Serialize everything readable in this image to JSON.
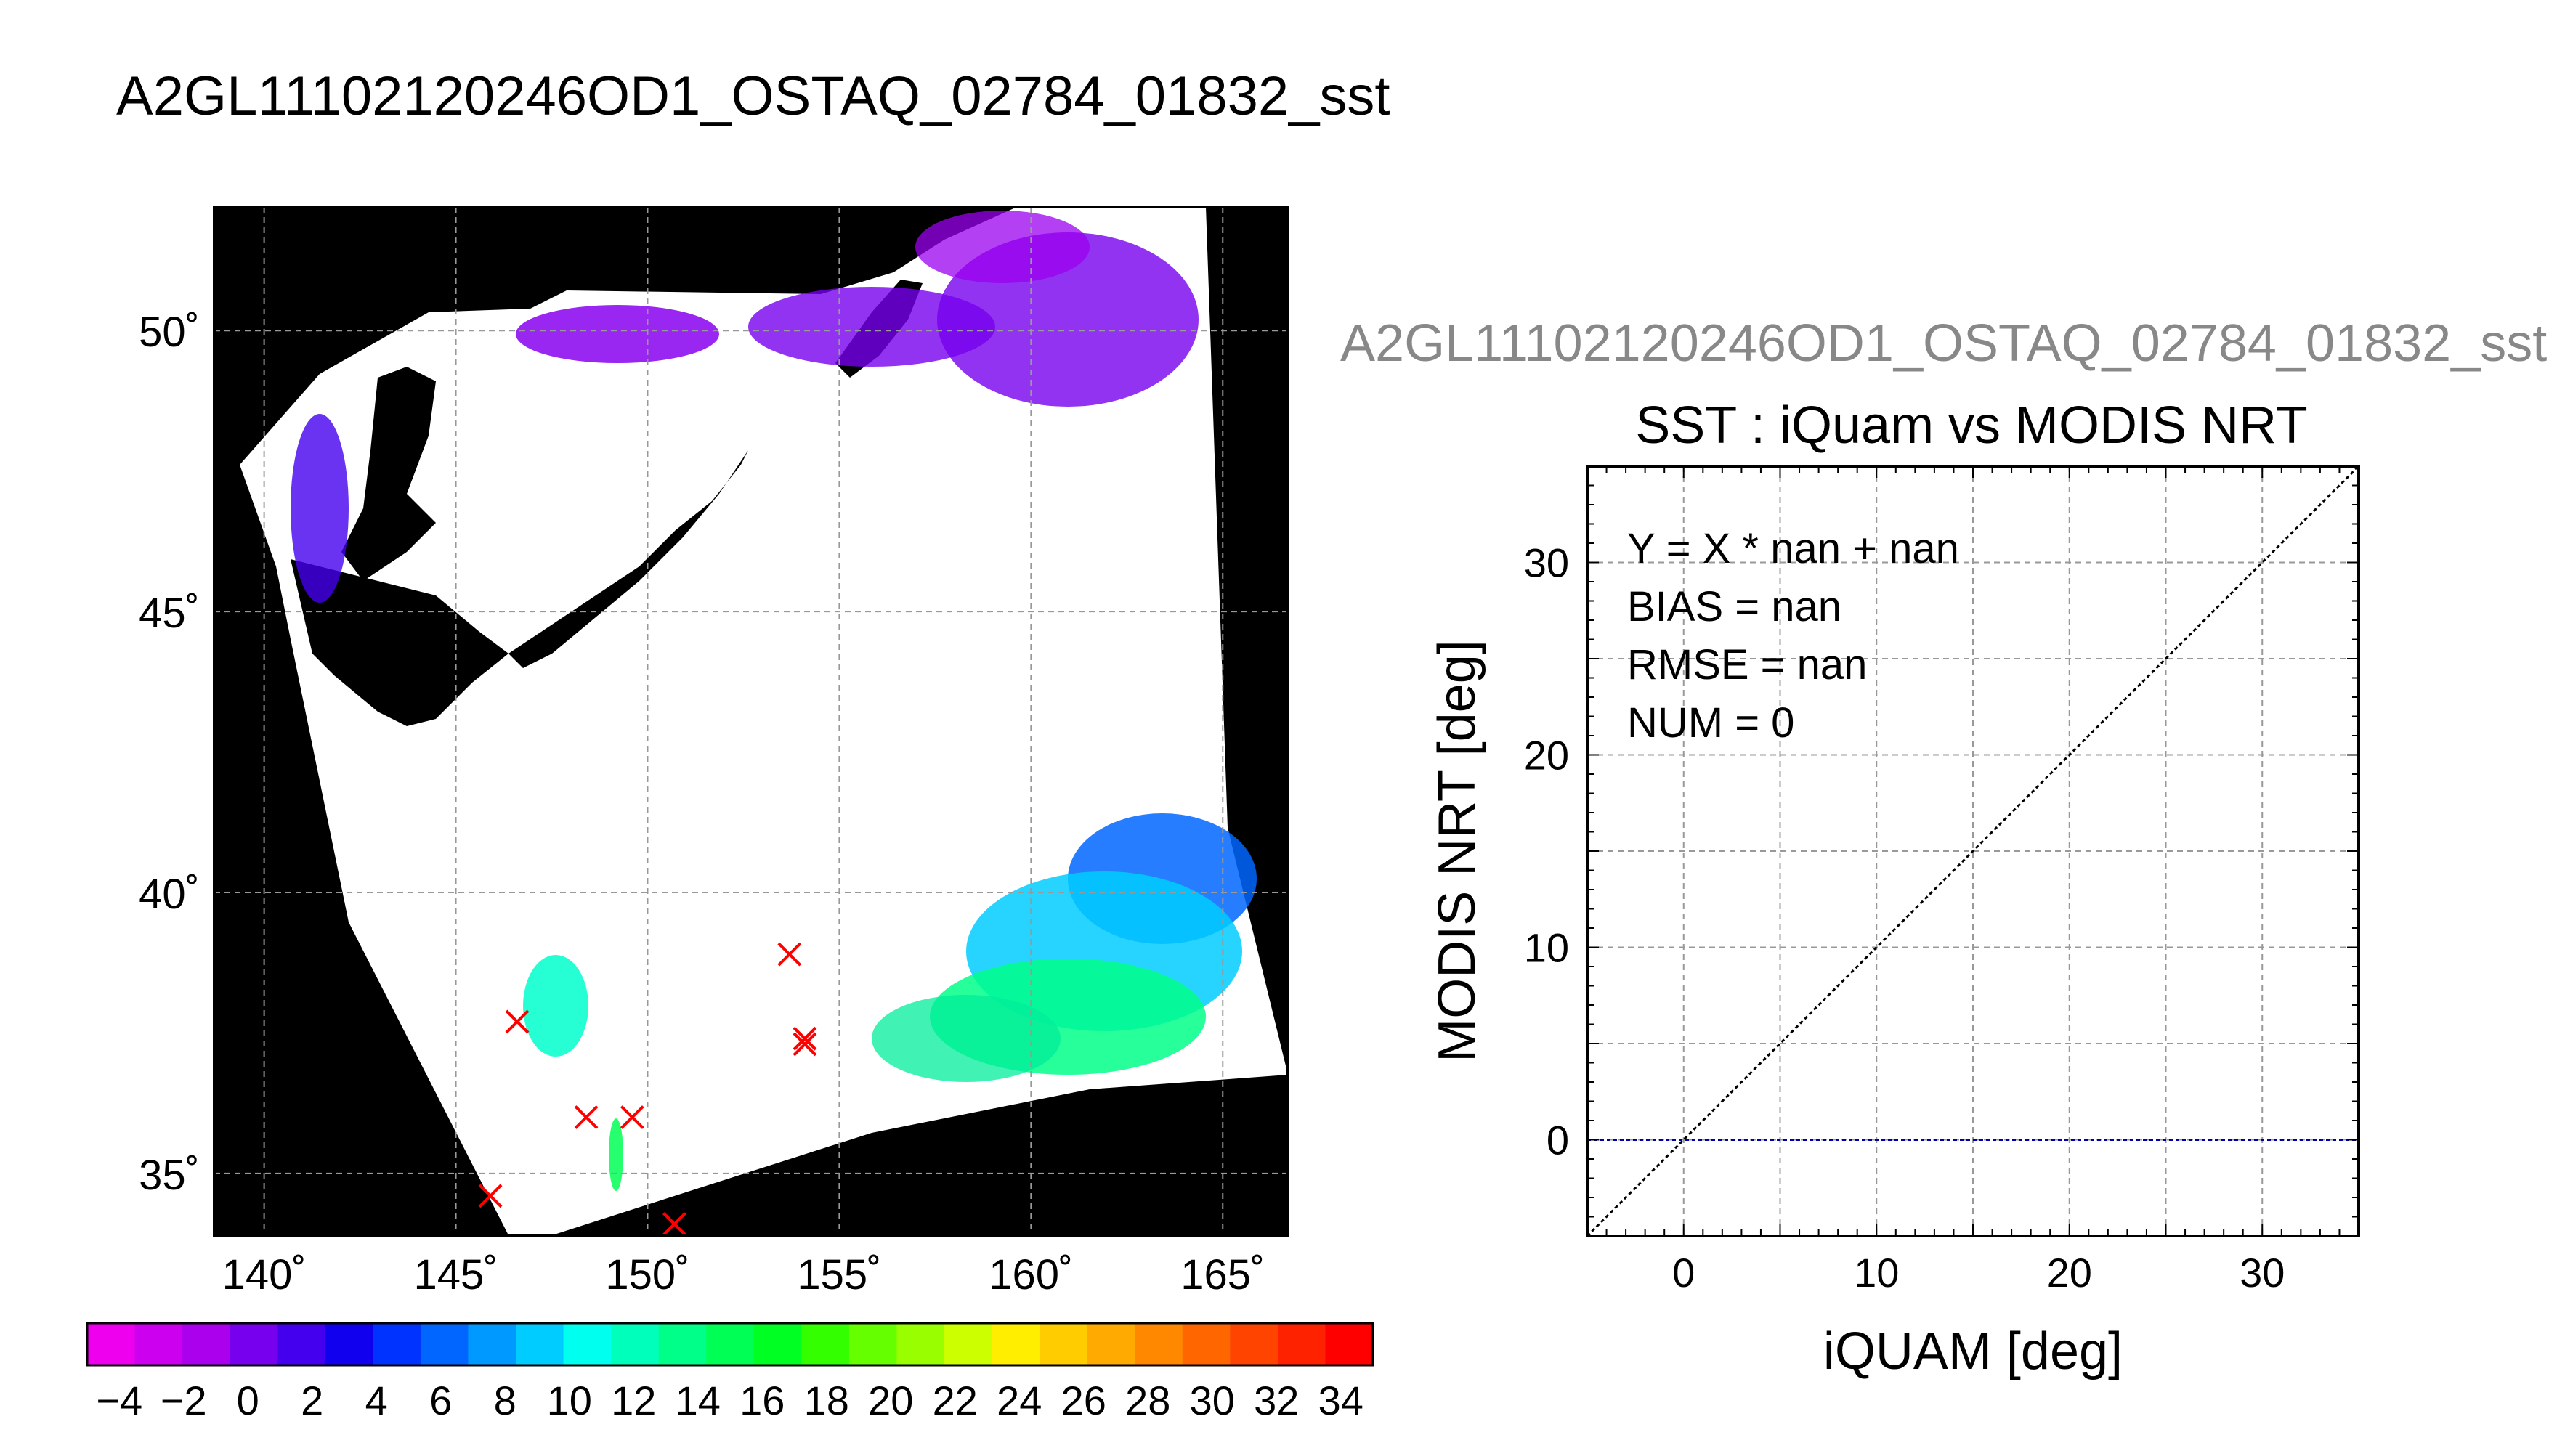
{
  "main_title": "A2GL11102120246OD1_OSTAQ_02784_01832_sst",
  "map": {
    "lat_labels": [
      "50˚",
      "45˚",
      "40˚",
      "35˚"
    ],
    "lon_labels": [
      "140˚",
      "145˚",
      "150˚",
      "155˚",
      "160˚",
      "165˚"
    ],
    "lat_values": [
      50,
      45,
      40,
      35
    ],
    "lon_values": [
      140,
      145,
      150,
      155,
      160,
      165
    ],
    "lat_range": [
      33.9,
      52.2
    ],
    "lon_range": [
      138.7,
      166.7
    ],
    "background_color": "#000000",
    "swath_color": "#ffffff",
    "marker_color": "#ff0000",
    "matchups": [
      {
        "lon": 146.6,
        "lat": 37.7
      },
      {
        "lon": 148.4,
        "lat": 36.0
      },
      {
        "lon": 149.6,
        "lat": 36.0
      },
      {
        "lon": 153.7,
        "lat": 38.9
      },
      {
        "lon": 154.1,
        "lat": 37.4
      },
      {
        "lon": 154.1,
        "lat": 37.3
      },
      {
        "lon": 145.9,
        "lat": 34.6
      },
      {
        "lon": 150.7,
        "lat": 34.1
      }
    ]
  },
  "colorbar": {
    "tick_labels": [
      "−4",
      "−2",
      "0",
      "2",
      "4",
      "6",
      "8",
      "10",
      "12",
      "14",
      "16",
      "18",
      "20",
      "22",
      "24",
      "26",
      "28",
      "30",
      "32",
      "34"
    ],
    "min": -5,
    "max": 35,
    "colors": [
      "#ee00ee",
      "#cc00ee",
      "#aa00ee",
      "#7700ee",
      "#4400ee",
      "#1100ee",
      "#0033ff",
      "#0066ff",
      "#0099ff",
      "#00ccff",
      "#00ffee",
      "#00ffbb",
      "#00ff88",
      "#00ff55",
      "#00ff22",
      "#33ff00",
      "#66ff00",
      "#99ff00",
      "#ccff00",
      "#ffee00",
      "#ffcc00",
      "#ffaa00",
      "#ff8800",
      "#ff6600",
      "#ff4400",
      "#ff2200",
      "#ff0000"
    ]
  },
  "chart_data": {
    "type": "scatter",
    "title": "SST : iQuam vs MODIS NRT",
    "subtitle": "A2GL11102120246OD1_OSTAQ_02784_01832_sst",
    "xlabel": "iQUAM [deg]",
    "ylabel": "MODIS NRT [deg]",
    "xlim": [
      -5,
      35
    ],
    "ylim": [
      -5,
      35
    ],
    "x_ticks": [
      0,
      10,
      20,
      30
    ],
    "y_ticks": [
      0,
      10,
      20,
      30
    ],
    "x_tick_labels": [
      "0",
      "10",
      "20",
      "30"
    ],
    "y_tick_labels": [
      "0",
      "10",
      "20",
      "30"
    ],
    "grid": true,
    "series": [],
    "reference_lines": [
      {
        "label": "",
        "kind": "y=x",
        "color": "#000000",
        "x": [
          -5,
          35
        ],
        "y": [
          -5,
          35
        ]
      },
      {
        "label": "",
        "kind": "y=0",
        "color": "#0000aa",
        "x": [
          -5,
          35
        ],
        "y": [
          0,
          0
        ]
      }
    ],
    "annotations": [
      "Y = X * nan + nan",
      "BIAS = nan",
      "RMSE = nan",
      "NUM = 0"
    ]
  }
}
